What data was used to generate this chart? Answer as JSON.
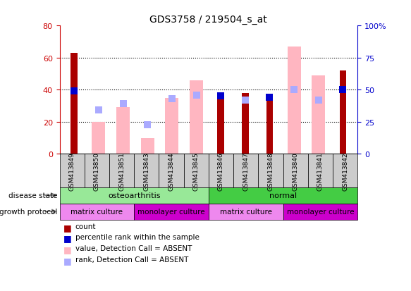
{
  "title": "GDS3758 / 219504_s_at",
  "samples": [
    "GSM413849",
    "GSM413850",
    "GSM413851",
    "GSM413843",
    "GSM413844",
    "GSM413845",
    "GSM413846",
    "GSM413847",
    "GSM413848",
    "GSM413840",
    "GSM413841",
    "GSM413842"
  ],
  "count_values": [
    63,
    null,
    null,
    null,
    null,
    null,
    38,
    38,
    36,
    null,
    null,
    52
  ],
  "percentile_rank": [
    49,
    null,
    null,
    null,
    null,
    null,
    45,
    null,
    44,
    null,
    null,
    50
  ],
  "absent_value": [
    null,
    20,
    29,
    10,
    35,
    46,
    null,
    null,
    null,
    67,
    49,
    null
  ],
  "absent_rank": [
    null,
    34,
    39,
    23,
    43,
    46,
    null,
    42,
    null,
    50,
    42,
    null
  ],
  "ylim_left": [
    0,
    80
  ],
  "ylim_right": [
    0,
    100
  ],
  "yticks_left": [
    0,
    20,
    40,
    60,
    80
  ],
  "yticks_right": [
    0,
    25,
    50,
    75,
    100
  ],
  "disease_state": [
    {
      "label": "osteoarthritis",
      "start": 0,
      "end": 6,
      "color": "#98E898"
    },
    {
      "label": "normal",
      "start": 6,
      "end": 12,
      "color": "#44CC44"
    }
  ],
  "growth_protocol": [
    {
      "label": "matrix culture",
      "start": 0,
      "end": 3,
      "color": "#EE88EE"
    },
    {
      "label": "monolayer culture",
      "start": 3,
      "end": 6,
      "color": "#CC00CC"
    },
    {
      "label": "matrix culture",
      "start": 6,
      "end": 9,
      "color": "#EE88EE"
    },
    {
      "label": "monolayer culture",
      "start": 9,
      "end": 12,
      "color": "#CC00CC"
    }
  ],
  "count_color": "#AA0000",
  "absent_value_color": "#FFB6C1",
  "percentile_color": "#0000CC",
  "absent_rank_color": "#AAAAFF",
  "tick_label_color_left": "#CC0000",
  "tick_label_color_right": "#0000CC",
  "xtick_bg_color": "#CCCCCC",
  "legend_items": [
    {
      "color": "#AA0000",
      "label": "count"
    },
    {
      "color": "#0000CC",
      "label": "percentile rank within the sample"
    },
    {
      "color": "#FFB6C1",
      "label": "value, Detection Call = ABSENT"
    },
    {
      "color": "#AAAAFF",
      "label": "rank, Detection Call = ABSENT"
    }
  ]
}
